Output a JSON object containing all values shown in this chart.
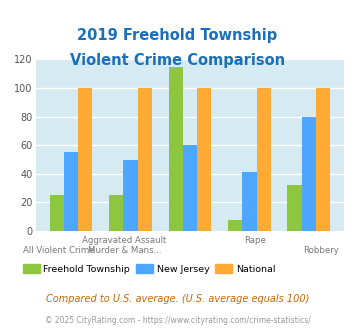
{
  "title_line1": "2019 Freehold Township",
  "title_line2": "Violent Crime Comparison",
  "freehold": [
    25,
    25,
    115,
    8,
    32
  ],
  "new_jersey": [
    55,
    50,
    60,
    41,
    80
  ],
  "national": [
    100,
    100,
    100,
    100,
    100
  ],
  "top_labels": [
    "",
    "Aggravated Assault",
    "",
    "Rape",
    ""
  ],
  "bot_labels": [
    "All Violent Crime",
    "Murder & Mans...",
    "",
    "",
    "Robbery"
  ],
  "color_freehold": "#8dc63f",
  "color_nj": "#4da6ff",
  "color_national": "#ffaa33",
  "bg_color": "#d6eaf2",
  "ylim": [
    0,
    120
  ],
  "yticks": [
    0,
    20,
    40,
    60,
    80,
    100,
    120
  ],
  "footnote1": "Compared to U.S. average. (U.S. average equals 100)",
  "footnote2": "© 2025 CityRating.com - https://www.cityrating.com/crime-statistics/",
  "title_color": "#1a6fba",
  "footnote1_color": "#cc6600",
  "footnote2_color": "#999999",
  "legend_freehold": "Freehold Township",
  "legend_nj": "New Jersey",
  "legend_national": "National"
}
